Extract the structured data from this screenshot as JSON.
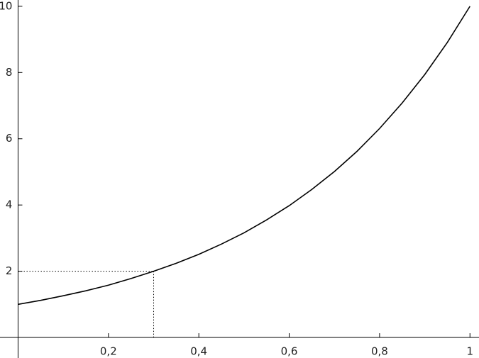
{
  "chart_data": {
    "type": "line",
    "x": [
      0,
      0.05,
      0.1,
      0.15,
      0.2,
      0.25,
      0.3,
      0.35,
      0.4,
      0.45,
      0.5,
      0.55,
      0.6,
      0.65,
      0.7,
      0.75,
      0.8,
      0.85,
      0.9,
      0.95,
      1
    ],
    "series": [
      {
        "color": "#000000",
        "values": [
          1,
          1.12,
          1.26,
          1.41,
          1.58,
          1.78,
          2,
          2.24,
          2.51,
          2.82,
          3.16,
          3.55,
          3.98,
          4.47,
          5.01,
          5.62,
          6.31,
          7.08,
          7.94,
          8.91,
          10
        ]
      }
    ],
    "reference_point": {
      "x": 0.3,
      "y": 2
    },
    "xlim": [
      -0.04,
      1.02
    ],
    "ylim": [
      -0.62,
      10.19
    ],
    "xticks": [
      {
        "value": 0.2,
        "label": "0,2"
      },
      {
        "value": 0.4,
        "label": "0,4"
      },
      {
        "value": 0.6,
        "label": "0,6"
      },
      {
        "value": 0.8,
        "label": "0,8"
      },
      1
    ],
    "yticks": [
      2,
      4,
      6,
      8,
      10
    ]
  }
}
